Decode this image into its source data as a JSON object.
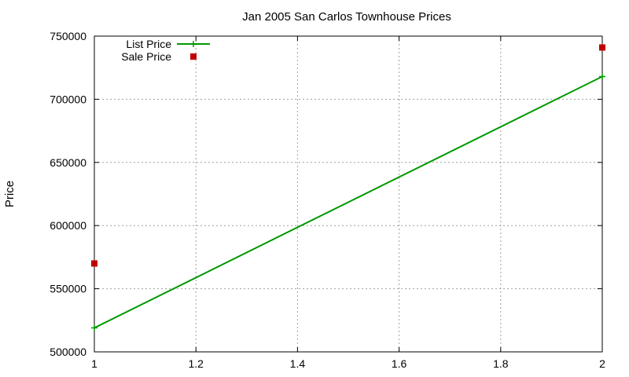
{
  "chart_data": {
    "type": "line",
    "title": "Jan 2005 San Carlos Townhouse Prices",
    "xlabel": "",
    "ylabel": "Price",
    "xlim": [
      1,
      2
    ],
    "ylim": [
      500000,
      750000
    ],
    "xticks": [
      1,
      1.2,
      1.4,
      1.6,
      1.8,
      2
    ],
    "xtick_labels": [
      "1",
      "1.2",
      "1.4",
      "1.6",
      "1.8",
      "2"
    ],
    "yticks": [
      500000,
      550000,
      600000,
      650000,
      700000,
      750000
    ],
    "ytick_labels": [
      "500000",
      "550000",
      "600000",
      "650000",
      "700000",
      "750000"
    ],
    "grid": true,
    "legend_position": "top-left",
    "series": [
      {
        "name": "List Price",
        "style": "lines+markers",
        "marker": "plus",
        "color": "#009900",
        "points": [
          [
            1,
            519000
          ],
          [
            2,
            718000
          ]
        ]
      },
      {
        "name": "Sale Price",
        "style": "markers",
        "marker": "square",
        "color": "#c00000",
        "points": [
          [
            1,
            570000
          ],
          [
            2,
            741000
          ]
        ]
      }
    ]
  }
}
